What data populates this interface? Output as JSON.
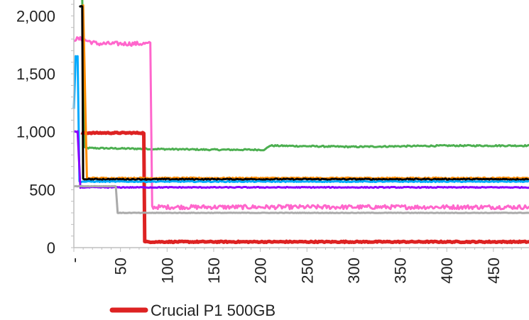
{
  "chart_data": {
    "type": "line",
    "xlabel": "",
    "ylabel": "",
    "xlim": [
      0,
      490
    ],
    "ylim": [
      0,
      2100
    ],
    "y_ticks": [
      {
        "value": 0,
        "label": "0"
      },
      {
        "value": 500,
        "label": "500"
      },
      {
        "value": 1000,
        "label": "1,000"
      },
      {
        "value": 1500,
        "label": "1,500"
      },
      {
        "value": 2000,
        "label": "2,000"
      }
    ],
    "x_ticks": [
      {
        "value": 0,
        "label": "-"
      },
      {
        "value": 50,
        "label": "50"
      },
      {
        "value": 100,
        "label": "100"
      },
      {
        "value": 150,
        "label": "150"
      },
      {
        "value": 200,
        "label": "200"
      },
      {
        "value": 250,
        "label": "250"
      },
      {
        "value": 300,
        "label": "300"
      },
      {
        "value": 350,
        "label": "350"
      },
      {
        "value": 400,
        "label": "400"
      },
      {
        "value": 450,
        "label": "450"
      }
    ],
    "grid": false,
    "legend": {
      "placement": "bottom",
      "visible_entries": [
        "Crucial P1 500GB"
      ]
    },
    "series": [
      {
        "name": "",
        "color": "#4caf50",
        "points": [
          [
            9,
            2150
          ],
          [
            12,
            860
          ],
          [
            100,
            850
          ],
          [
            150,
            845
          ],
          [
            205,
            845
          ],
          [
            210,
            880
          ],
          [
            300,
            870
          ],
          [
            400,
            880
          ],
          [
            490,
            880
          ]
        ],
        "noise": 6
      },
      {
        "name": "",
        "color": "#ff66cc",
        "points": [
          [
            0,
            1800
          ],
          [
            8,
            1800
          ],
          [
            25,
            1760
          ],
          [
            50,
            1760
          ],
          [
            82,
            1760
          ],
          [
            84,
            350
          ],
          [
            150,
            350
          ],
          [
            300,
            350
          ],
          [
            490,
            350
          ]
        ],
        "noise": 18
      },
      {
        "name": "Crucial P1 500GB",
        "color": "#dd2222",
        "points": [
          [
            8,
            990
          ],
          [
            75,
            990
          ],
          [
            76,
            50
          ],
          [
            150,
            50
          ],
          [
            300,
            50
          ],
          [
            490,
            50
          ]
        ],
        "noise": 5
      },
      {
        "name": "",
        "color": "#ff8c00",
        "points": [
          [
            10,
            2100
          ],
          [
            14,
            600
          ],
          [
            60,
            600
          ],
          [
            150,
            600
          ],
          [
            300,
            600
          ],
          [
            490,
            600
          ]
        ],
        "noise": 5
      },
      {
        "name": "",
        "color": "#000000",
        "points": [
          [
            6,
            2080
          ],
          [
            9,
            2080
          ],
          [
            10,
            590
          ],
          [
            60,
            590
          ],
          [
            200,
            590
          ],
          [
            490,
            590
          ]
        ],
        "noise": 5
      },
      {
        "name": "",
        "color": "#00aaff",
        "points": [
          [
            0,
            1200
          ],
          [
            2,
            1650
          ],
          [
            4,
            1650
          ],
          [
            6,
            570
          ],
          [
            100,
            570
          ],
          [
            300,
            570
          ],
          [
            490,
            570
          ]
        ],
        "noise": 4
      },
      {
        "name": "",
        "color": "#8800ff",
        "points": [
          [
            0,
            1000
          ],
          [
            4,
            1000
          ],
          [
            7,
            520
          ],
          [
            100,
            520
          ],
          [
            300,
            520
          ],
          [
            490,
            520
          ]
        ],
        "noise": 4
      },
      {
        "name": "",
        "color": "#aaaaaa",
        "points": [
          [
            0,
            530
          ],
          [
            45,
            530
          ],
          [
            47,
            300
          ],
          [
            150,
            300
          ],
          [
            300,
            300
          ],
          [
            490,
            300
          ]
        ],
        "noise": 2
      }
    ]
  }
}
